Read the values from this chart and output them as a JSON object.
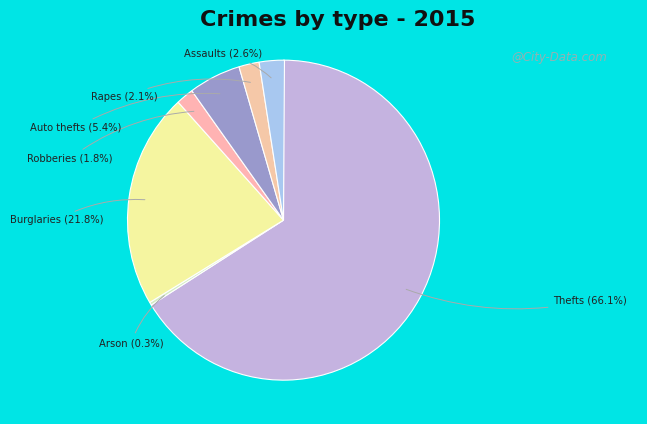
{
  "title": "Crimes by type - 2015",
  "title_fontsize": 16,
  "title_fontweight": "bold",
  "labels": [
    "Thefts",
    "Arson",
    "Burglaries",
    "Robberies",
    "Auto thefts",
    "Rapes",
    "Assaults"
  ],
  "values": [
    66.1,
    0.3,
    21.8,
    1.8,
    5.4,
    2.1,
    2.6
  ],
  "colors": [
    "#c5b3e0",
    "#d4ecc4",
    "#f5f5a0",
    "#ffb3b3",
    "#9999cc",
    "#f5c8a8",
    "#a8c8f0"
  ],
  "label_format": [
    "Thefts (66.1%)",
    "Arson (0.3%)",
    "Burglaries (21.8%)",
    "Robberies (1.8%)",
    "Auto thefts (5.4%)",
    "Rapes (2.1%)",
    "Assaults (2.6%)"
  ],
  "background_top": "#00e5e5",
  "background_main": "#d8ede8",
  "watermark": "@City-Data.com",
  "startangle": 90
}
